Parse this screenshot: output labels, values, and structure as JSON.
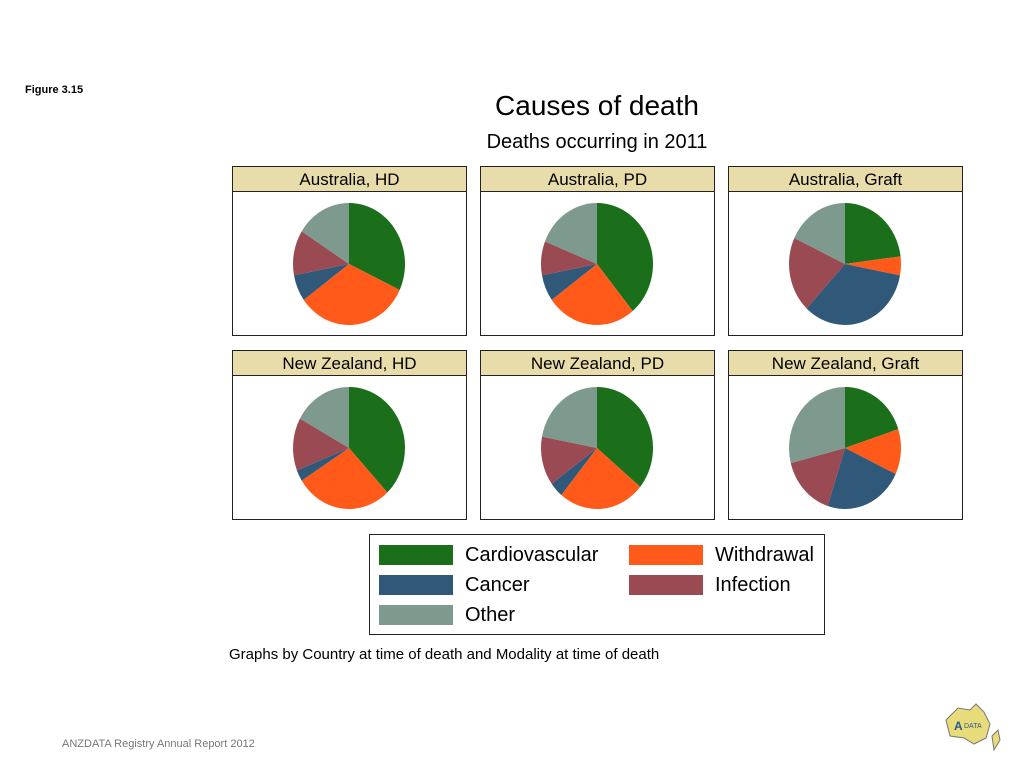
{
  "figure_label": "Figure 3.15",
  "footer": "ANZDATA Registry Annual Report 2012",
  "logo_text": "ANZDATA",
  "chart_data": {
    "type": "pie",
    "title": "Causes of death",
    "subtitle": "Deaths occurring in 2011",
    "note": "Graphs by Country at time of death and Modality at time of death",
    "categories": [
      "Cardiovascular",
      "Withdrawal",
      "Cancer",
      "Infection",
      "Other"
    ],
    "colors": [
      "#1b6f1b",
      "#ff5a1a",
      "#2f5879",
      "#9a4a52",
      "#7e998e"
    ],
    "legend_position": "bottom",
    "panels": [
      {
        "label": "Australia, HD",
        "values": [
          32,
          33,
          7,
          12,
          16
        ]
      },
      {
        "label": "Australia, PD",
        "values": [
          39,
          26,
          7,
          9,
          19
        ]
      },
      {
        "label": "Australia, Graft",
        "values": [
          23,
          5,
          34,
          20,
          18
        ]
      },
      {
        "label": "New Zealand, HD",
        "values": [
          38,
          28,
          3,
          14,
          17
        ]
      },
      {
        "label": "New Zealand, PD",
        "values": [
          36,
          25,
          4,
          13,
          22
        ]
      },
      {
        "label": "New Zealand, Graft",
        "values": [
          20,
          12,
          23,
          16,
          29
        ]
      }
    ]
  }
}
